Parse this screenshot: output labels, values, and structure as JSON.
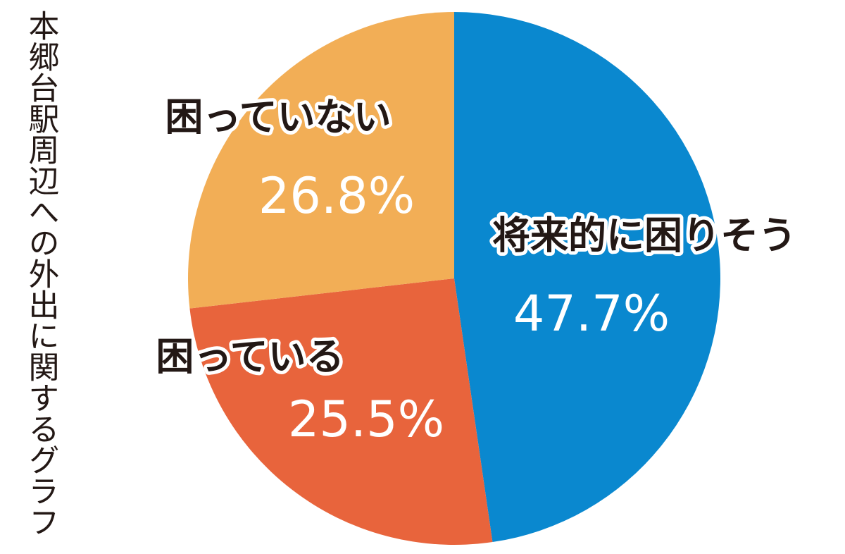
{
  "chart_data": {
    "type": "pie",
    "title": "本郷台駅周辺への外出に関するグラフ",
    "categories": [
      "将来的に困りそう",
      "困っている",
      "困っていない"
    ],
    "values": [
      47.7,
      25.5,
      26.8
    ],
    "value_labels": [
      "47.7%",
      "25.5%",
      "26.8%"
    ],
    "colors": [
      "#0a88cf",
      "#e8643c",
      "#f2ae56"
    ]
  }
}
